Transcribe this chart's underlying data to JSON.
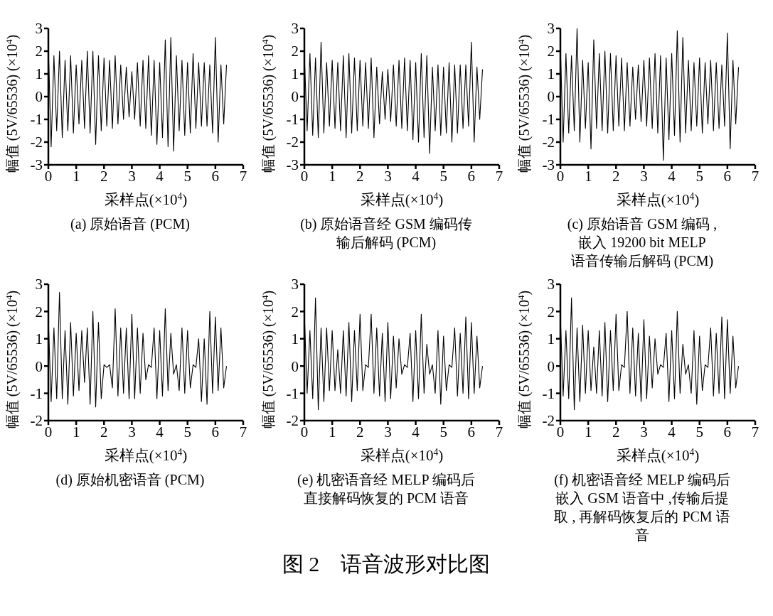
{
  "chart_data": [
    {
      "type": "line",
      "title": "(a)  原始语音 (PCM)",
      "xlabel": "采样点(×10$^{4}$)",
      "ylabel": "幅值 (5V/65536) (×10$^{4}$)",
      "annotations": [
        "图 2　语音波形对比图"
      ],
      "xlim": [
        0,
        7
      ],
      "xticks": [
        0,
        1,
        2,
        3,
        4,
        5,
        6,
        7
      ],
      "ylim": [
        -3,
        3
      ],
      "yticks": [
        -3,
        -2,
        -1,
        0,
        1,
        2,
        3
      ],
      "x": [
        0,
        0.1,
        0.2,
        0.3,
        0.4,
        0.5,
        0.6,
        0.7,
        0.8,
        0.9,
        1,
        1.1,
        1.2,
        1.3,
        1.4,
        1.5,
        1.6,
        1.7,
        1.8,
        1.9,
        2,
        2.1,
        2.2,
        2.3,
        2.4,
        2.5,
        2.6,
        2.7,
        2.8,
        2.9,
        3,
        3.1,
        3.2,
        3.3,
        3.4,
        3.5,
        3.6,
        3.7,
        3.8,
        3.9,
        4,
        4.1,
        4.2,
        4.3,
        4.4,
        4.5,
        4.6,
        4.7,
        4.8,
        4.9,
        5,
        5.1,
        5.2,
        5.3,
        5.4,
        5.5,
        5.6,
        5.7,
        5.8,
        5.9,
        6,
        6.1,
        6.2,
        6.3,
        6.4
      ],
      "series": [
        {
          "color": "#000000",
          "values": [
            2.2,
            -2.2,
            1.8,
            -1.5,
            2.0,
            -1.8,
            1.6,
            -1.5,
            1.8,
            -1.6,
            1.4,
            -1.2,
            1.6,
            -1.4,
            2.0,
            -1.6,
            2.0,
            -2.1,
            1.8,
            -1.5,
            1.7,
            -1.3,
            1.6,
            -1.4,
            1.8,
            -1.2,
            1.4,
            -1.0,
            1.3,
            -0.9,
            1.1,
            -1.0,
            1.5,
            -1.3,
            1.6,
            -1.4,
            1.8,
            -1.7,
            1.6,
            -2.1,
            1.5,
            -1.8,
            2.5,
            -2.2,
            2.6,
            -2.4,
            1.8,
            -1.5,
            1.6,
            -1.7,
            1.5,
            -1.6,
            1.9,
            -1.4,
            1.5,
            -1.3,
            1.5,
            -1.3,
            1.4,
            -1.6,
            2.6,
            -2.0,
            1.4,
            -1.2,
            1.4
          ]
        }
      ]
    },
    {
      "type": "line",
      "title": "(b)  原始语音经 GSM 编码传输后解码 (PCM)",
      "xlabel": "采样点(×10$^{4}$)",
      "ylabel": "幅值 (5V/65536) (×10$^{4}$)",
      "xlim": [
        0,
        7
      ],
      "xticks": [
        0,
        1,
        2,
        3,
        4,
        5,
        6,
        7
      ],
      "ylim": [
        -3,
        3
      ],
      "yticks": [
        -3,
        -2,
        -1,
        0,
        1,
        2,
        3
      ],
      "x": [
        0,
        0.1,
        0.2,
        0.3,
        0.4,
        0.5,
        0.6,
        0.7,
        0.8,
        0.9,
        1,
        1.1,
        1.2,
        1.3,
        1.4,
        1.5,
        1.6,
        1.7,
        1.8,
        1.9,
        2,
        2.1,
        2.2,
        2.3,
        2.4,
        2.5,
        2.6,
        2.7,
        2.8,
        2.9,
        3,
        3.1,
        3.2,
        3.3,
        3.4,
        3.5,
        3.6,
        3.7,
        3.8,
        3.9,
        4,
        4.1,
        4.2,
        4.3,
        4.4,
        4.5,
        4.6,
        4.7,
        4.8,
        4.9,
        5,
        5.1,
        5.2,
        5.3,
        5.4,
        5.5,
        5.6,
        5.7,
        5.8,
        5.9,
        6,
        6.1,
        6.2,
        6.3,
        6.4
      ],
      "series": [
        {
          "color": "#000000",
          "values": [
            1.8,
            -1.5,
            1.9,
            -1.7,
            1.7,
            -1.8,
            2.4,
            -1.6,
            1.5,
            -1.3,
            1.6,
            -1.4,
            1.5,
            -1.5,
            1.8,
            -1.8,
            1.9,
            -1.6,
            1.7,
            -1.5,
            1.6,
            -1.3,
            1.5,
            -1.4,
            1.7,
            -1.8,
            1.3,
            -1.2,
            1.1,
            -1.0,
            1.2,
            -1.1,
            1.4,
            -1.3,
            1.6,
            -1.4,
            1.7,
            -1.5,
            1.6,
            -1.9,
            1.5,
            -2.0,
            1.9,
            -1.8,
            1.8,
            -2.5,
            1.3,
            -1.5,
            1.4,
            -1.7,
            1.3,
            -1.6,
            1.5,
            -2.0,
            1.4,
            -1.6,
            1.4,
            -1.4,
            1.4,
            -1.3,
            2.4,
            -2.0,
            1.3,
            -1.0,
            1.2
          ]
        }
      ]
    },
    {
      "type": "line",
      "title": "(c)  原始语音 GSM 编码 ,\n嵌入 19200  bit  MELP\n语音传输后解码 (PCM)",
      "xlabel": "采样点(×10$^{4}$)",
      "ylabel": "幅值 (5V/65536) (×10$^{4}$)",
      "xlim": [
        0,
        7
      ],
      "xticks": [
        0,
        1,
        2,
        3,
        4,
        5,
        6,
        7
      ],
      "ylim": [
        -3,
        3
      ],
      "yticks": [
        -3,
        -2,
        -1,
        0,
        1,
        2,
        3
      ],
      "x": [
        0,
        0.1,
        0.2,
        0.3,
        0.4,
        0.5,
        0.6,
        0.7,
        0.8,
        0.9,
        1,
        1.1,
        1.2,
        1.3,
        1.4,
        1.5,
        1.6,
        1.7,
        1.8,
        1.9,
        2,
        2.1,
        2.2,
        2.3,
        2.4,
        2.5,
        2.6,
        2.7,
        2.8,
        2.9,
        3,
        3.1,
        3.2,
        3.3,
        3.4,
        3.5,
        3.6,
        3.7,
        3.8,
        3.9,
        4,
        4.1,
        4.2,
        4.3,
        4.4,
        4.5,
        4.6,
        4.7,
        4.8,
        4.9,
        5,
        5.1,
        5.2,
        5.3,
        5.4,
        5.5,
        5.6,
        5.7,
        5.8,
        5.9,
        6,
        6.1,
        6.2,
        6.3,
        6.4
      ],
      "series": [
        {
          "color": "#000000",
          "values": [
            2.2,
            -2.0,
            1.9,
            -1.6,
            1.8,
            -1.5,
            3.0,
            -2.0,
            1.6,
            -1.4,
            1.5,
            -2.3,
            2.5,
            -1.4,
            1.9,
            -1.5,
            2.0,
            -1.6,
            1.9,
            -1.5,
            1.8,
            -1.3,
            1.7,
            -1.5,
            1.5,
            -1.3,
            1.3,
            -1.0,
            1.4,
            -1.1,
            1.6,
            -1.3,
            1.7,
            -1.4,
            1.9,
            -1.6,
            1.8,
            -2.8,
            1.7,
            -1.9,
            1.9,
            -1.7,
            2.9,
            -2.0,
            2.6,
            -1.6,
            1.6,
            -1.5,
            1.5,
            -1.3,
            1.7,
            -1.6,
            1.5,
            -1.2,
            1.6,
            -1.5,
            1.5,
            -1.4,
            1.4,
            -1.3,
            2.8,
            -2.3,
            1.6,
            -1.2,
            1.3
          ]
        }
      ]
    },
    {
      "type": "line",
      "title": "(d)  原始机密语音 (PCM)",
      "xlabel": "采样点(×10$^{4}$)",
      "ylabel": "幅值 (5V/65536) (×10$^{4}$)",
      "xlim": [
        0,
        7
      ],
      "xticks": [
        0,
        1,
        2,
        3,
        4,
        5,
        6,
        7
      ],
      "ylim": [
        -2,
        3
      ],
      "yticks": [
        -2,
        -1,
        0,
        1,
        2,
        3
      ],
      "x": [
        0,
        0.1,
        0.2,
        0.3,
        0.4,
        0.5,
        0.6,
        0.7,
        0.8,
        0.9,
        1,
        1.1,
        1.2,
        1.3,
        1.4,
        1.5,
        1.6,
        1.7,
        1.8,
        1.9,
        2,
        2.1,
        2.2,
        2.3,
        2.4,
        2.5,
        2.6,
        2.7,
        2.8,
        2.9,
        3,
        3.1,
        3.2,
        3.3,
        3.4,
        3.5,
        3.6,
        3.7,
        3.8,
        3.9,
        4,
        4.1,
        4.2,
        4.3,
        4.4,
        4.5,
        4.6,
        4.7,
        4.8,
        4.9,
        5,
        5.1,
        5.2,
        5.3,
        5.4,
        5.5,
        5.6,
        5.7,
        5.8,
        5.9,
        6,
        6.1,
        6.2,
        6.3,
        6.4
      ],
      "series": [
        {
          "color": "#000000",
          "values": [
            1.7,
            -1.3,
            1.4,
            -1.2,
            2.7,
            -1.2,
            1.3,
            -1.4,
            1.6,
            -1.1,
            1.2,
            -0.9,
            1.3,
            -0.6,
            1.4,
            -1.4,
            2.0,
            -1.5,
            1.6,
            -1.2,
            0.05,
            -0.05,
            0.05,
            -0.8,
            2.1,
            -1.1,
            1.4,
            -1.0,
            1.4,
            -1.2,
            1.9,
            -1.2,
            1.4,
            -1.0,
            1.2,
            -0.5,
            0.05,
            -0.05,
            1.4,
            -1.2,
            1.3,
            -1.1,
            2.1,
            -0.9,
            1.2,
            -0.3,
            0.05,
            -0.9,
            1.4,
            -1.0,
            1.3,
            -0.8,
            0.05,
            -0.05,
            1.0,
            -1.3,
            1.0,
            -1.4,
            2.0,
            -1.0,
            1.8,
            -0.9,
            1.4,
            -0.8,
            0
          ]
        }
      ]
    },
    {
      "type": "line",
      "title": "(e)  机密语音经 MELP 编码后直接解码恢复的 PCM 语音",
      "xlabel": "采样点(×10$^{4}$)",
      "ylabel": "幅值 (5V/65536) (×10$^{4}$)",
      "xlim": [
        0,
        7
      ],
      "xticks": [
        0,
        1,
        2,
        3,
        4,
        5,
        6,
        7
      ],
      "ylim": [
        -2,
        3
      ],
      "yticks": [
        -2,
        -1,
        0,
        1,
        2,
        3
      ],
      "x": [
        0,
        0.1,
        0.2,
        0.3,
        0.4,
        0.5,
        0.6,
        0.7,
        0.8,
        0.9,
        1,
        1.1,
        1.2,
        1.3,
        1.4,
        1.5,
        1.6,
        1.7,
        1.8,
        1.9,
        2,
        2.1,
        2.2,
        2.3,
        2.4,
        2.5,
        2.6,
        2.7,
        2.8,
        2.9,
        3,
        3.1,
        3.2,
        3.3,
        3.4,
        3.5,
        3.6,
        3.7,
        3.8,
        3.9,
        4,
        4.1,
        4.2,
        4.3,
        4.4,
        4.5,
        4.6,
        4.7,
        4.8,
        4.9,
        5,
        5.1,
        5.2,
        5.3,
        5.4,
        5.5,
        5.6,
        5.7,
        5.8,
        5.9,
        6,
        6.1,
        6.2,
        6.3,
        6.4
      ],
      "series": [
        {
          "color": "#000000",
          "values": [
            1.9,
            -1.0,
            1.3,
            -1.2,
            2.5,
            -1.6,
            1.4,
            -1.3,
            1.4,
            -0.9,
            1.3,
            -0.9,
            0.6,
            -1.0,
            1.3,
            -1.1,
            1.6,
            -1.3,
            1.3,
            -0.9,
            1.9,
            -0.9,
            0.05,
            -0.05,
            1.9,
            -1.0,
            1.4,
            -1.1,
            1.2,
            -1.3,
            1.6,
            -1.2,
            1.1,
            -0.8,
            1.0,
            -0.3,
            0.05,
            -0.05,
            1.2,
            -1.3,
            1.3,
            -1.2,
            1.9,
            -1.0,
            0.8,
            -0.3,
            0.05,
            -1.0,
            1.3,
            -1.4,
            1.1,
            -0.9,
            0.05,
            -0.05,
            1.4,
            -1.1,
            1.2,
            -1.0,
            1.8,
            -1.2,
            1.6,
            -1.0,
            1.1,
            -0.8,
            0
          ]
        }
      ]
    },
    {
      "type": "line",
      "title": "(f)  机密语音经 MELP 编码后嵌入 GSM 语音中 ,传输后提取 , 再解码恢复后的 PCM 语音",
      "xlabel": "采样点(×10$^{4}$)",
      "ylabel": "幅值 (5V/65536) (×10$^{4}$)",
      "xlim": [
        0,
        7
      ],
      "xticks": [
        0,
        1,
        2,
        3,
        4,
        5,
        6,
        7
      ],
      "ylim": [
        -2,
        3
      ],
      "yticks": [
        -2,
        -1,
        0,
        1,
        2,
        3
      ],
      "x": [
        0,
        0.1,
        0.2,
        0.3,
        0.4,
        0.5,
        0.6,
        0.7,
        0.8,
        0.9,
        1,
        1.1,
        1.2,
        1.3,
        1.4,
        1.5,
        1.6,
        1.7,
        1.8,
        1.9,
        2,
        2.1,
        2.2,
        2.3,
        2.4,
        2.5,
        2.6,
        2.7,
        2.8,
        2.9,
        3,
        3.1,
        3.2,
        3.3,
        3.4,
        3.5,
        3.6,
        3.7,
        3.8,
        3.9,
        4,
        4.1,
        4.2,
        4.3,
        4.4,
        4.5,
        4.6,
        4.7,
        4.8,
        4.9,
        5,
        5.1,
        5.2,
        5.3,
        5.4,
        5.5,
        5.6,
        5.7,
        5.8,
        5.9,
        6,
        6.1,
        6.2,
        6.3,
        6.4
      ],
      "series": [
        {
          "color": "#000000",
          "values": [
            1.8,
            -1.1,
            1.3,
            -1.2,
            2.5,
            -1.6,
            1.4,
            -1.3,
            1.5,
            -1.0,
            1.3,
            -0.9,
            0.7,
            -1.0,
            1.3,
            -1.1,
            1.6,
            -1.3,
            1.3,
            -0.9,
            1.9,
            -0.9,
            0.05,
            -0.05,
            2.0,
            -1.0,
            1.4,
            -1.1,
            1.2,
            -1.3,
            1.7,
            -1.2,
            1.1,
            -0.8,
            1.0,
            -0.3,
            0.05,
            -0.05,
            1.2,
            -1.3,
            1.3,
            -1.2,
            2.0,
            -1.0,
            0.8,
            -0.3,
            0.05,
            -1.0,
            1.3,
            -1.4,
            1.1,
            -0.9,
            0.05,
            -0.05,
            1.4,
            -1.1,
            1.2,
            -1.0,
            1.8,
            -1.2,
            1.7,
            -1.0,
            1.1,
            -0.8,
            0
          ]
        }
      ]
    }
  ]
}
